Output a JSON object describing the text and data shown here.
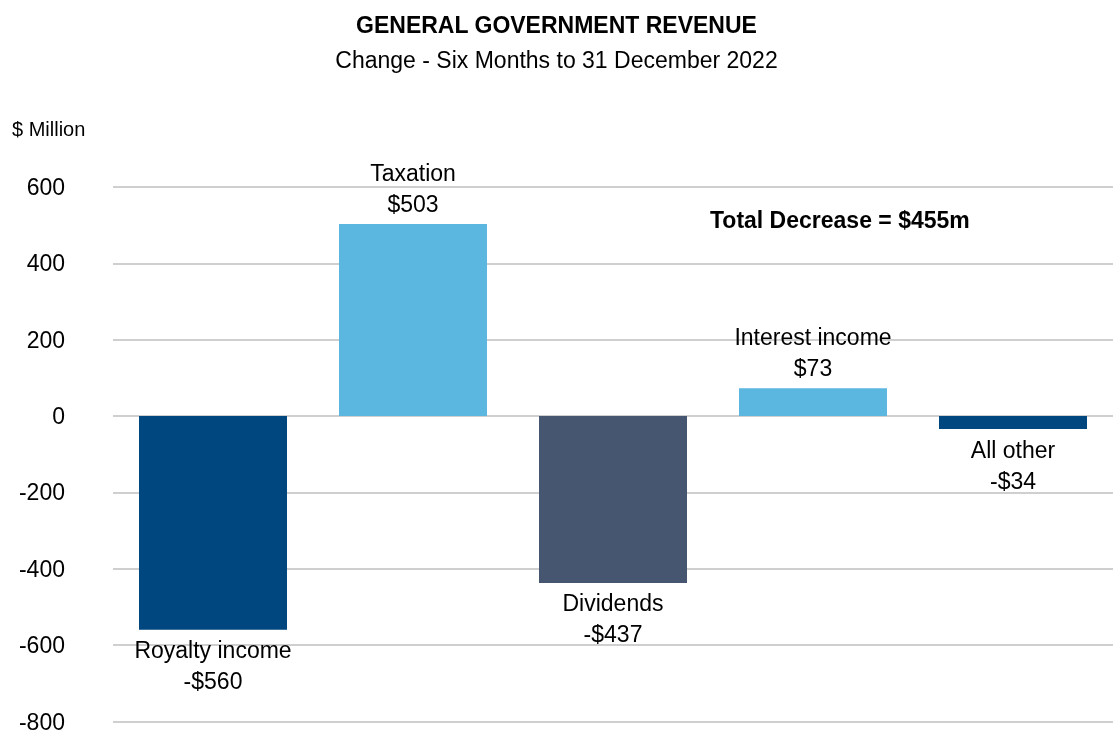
{
  "chart_data": {
    "type": "bar",
    "title": "GENERAL GOVERNMENT REVENUE",
    "subtitle": "Change - Six Months to 31 December 2022",
    "ylabel": "$ Million",
    "categories": [
      "Royalty income",
      "Taxation",
      "Dividends",
      "Interest income",
      "All other"
    ],
    "values": [
      -560,
      503,
      -437,
      73,
      -34
    ],
    "colors": [
      "#00467f",
      "#5bb6e0",
      "#465670",
      "#5bb6e0",
      "#00467f"
    ],
    "value_labels": [
      "-$560",
      "$503",
      "-$437",
      "$73",
      "-$34"
    ],
    "ylim": [
      -800,
      600
    ],
    "yticks": [
      -800,
      -600,
      -400,
      -200,
      0,
      200,
      400,
      600
    ],
    "grid": "y",
    "tick_labels": "y",
    "annotations": [
      "Total Decrease = $455m"
    ]
  }
}
